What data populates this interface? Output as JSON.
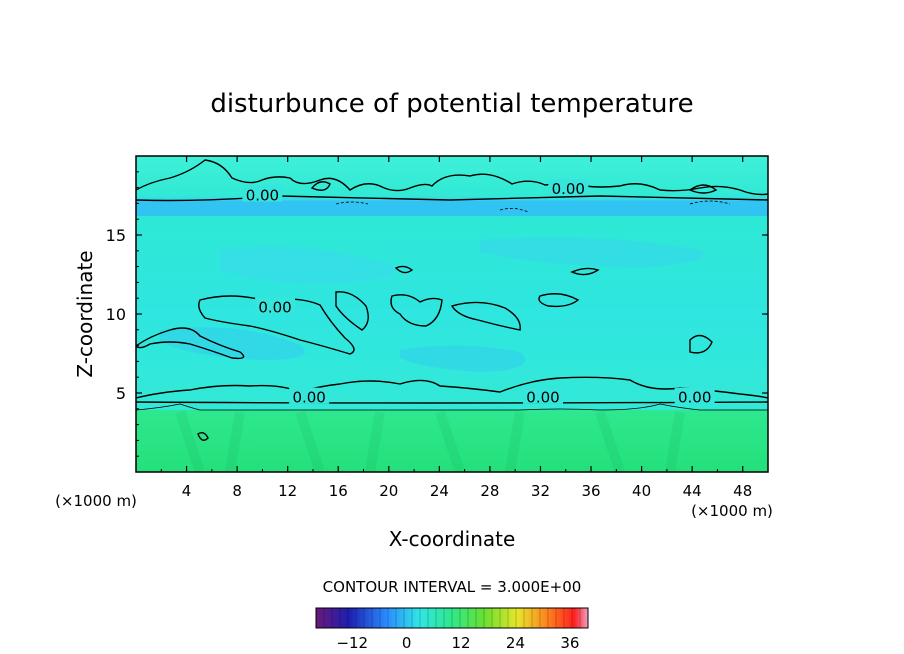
{
  "chart_data": {
    "type": "contour",
    "title": "disturbunce of potential temperature",
    "xlabel": "X-coordinate",
    "ylabel": "Z-coordinate",
    "x_unit_left": "(×1000 m)",
    "x_unit_right": "(×1000 m)",
    "xlim": [
      0,
      50
    ],
    "ylim": [
      0,
      20
    ],
    "x_ticks": [
      4,
      8,
      12,
      16,
      20,
      24,
      28,
      32,
      36,
      40,
      44,
      48
    ],
    "y_ticks": [
      5,
      10,
      15
    ],
    "contour_interval_text": "CONTOUR INTERVAL = 3.000E+00",
    "contour_interval": 3.0,
    "contour_labels": [
      {
        "text": "0.00",
        "x": 10.0,
        "z": 17.5
      },
      {
        "text": "0.00",
        "x": 34.2,
        "z": 17.9
      },
      {
        "text": "0.00",
        "x": 11.0,
        "z": 10.4
      },
      {
        "text": "0.00",
        "x": 13.7,
        "z": 4.7
      },
      {
        "text": "0.00",
        "x": 32.2,
        "z": 4.7
      },
      {
        "text": "0.00",
        "x": 44.2,
        "z": 4.7
      }
    ],
    "colorbar": {
      "min": -20,
      "max": 40,
      "ticks": [
        -12,
        0,
        12,
        24,
        36
      ]
    },
    "colors": {
      "upper_field": "#2fe8dc",
      "lower_field": "#27e47c",
      "band": "#29b5ff",
      "contour_line": "#000000"
    }
  }
}
